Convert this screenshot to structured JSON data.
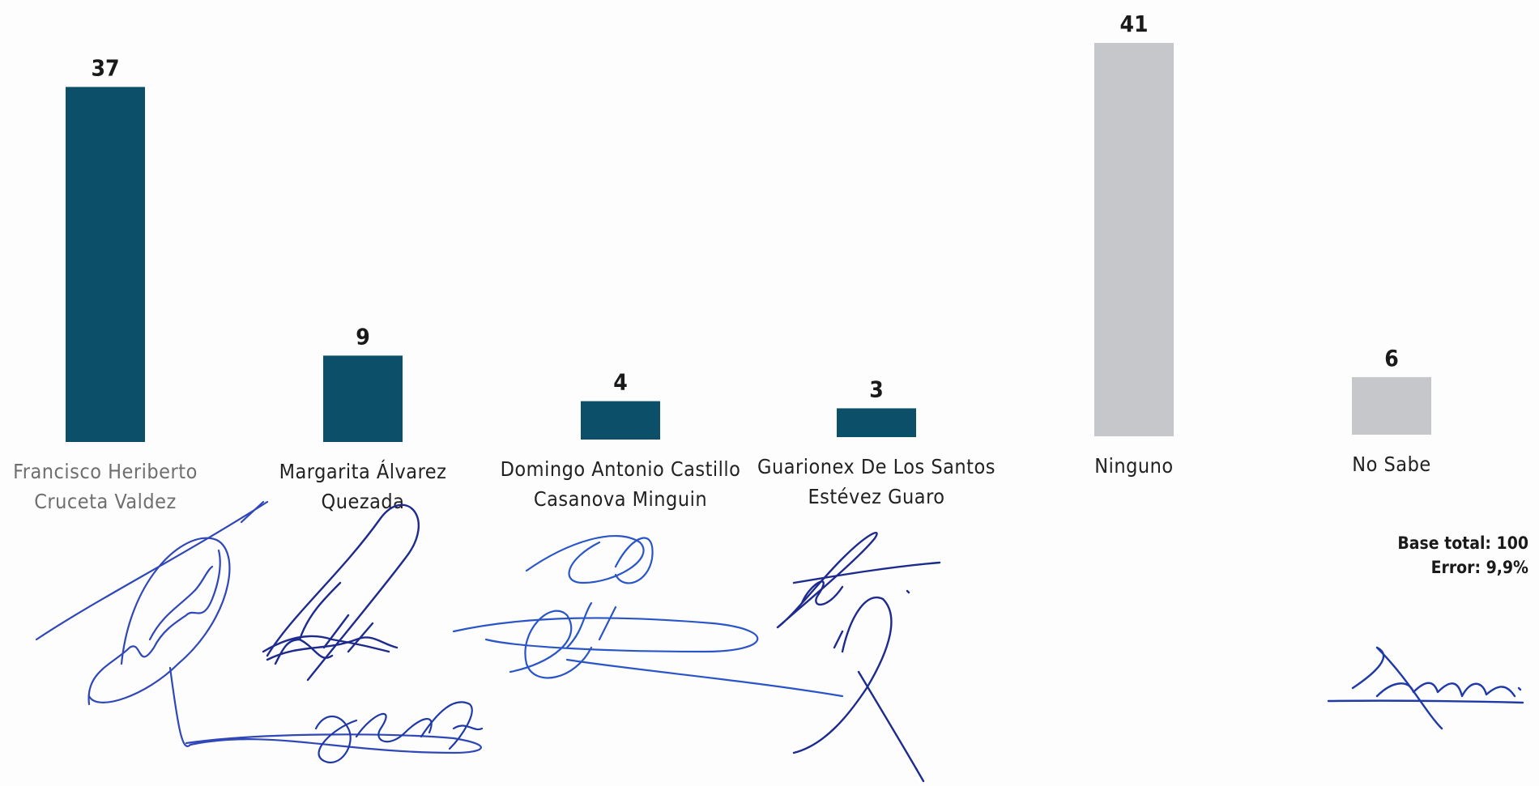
{
  "chart_data": {
    "type": "bar",
    "categories": [
      "Francisco Heriberto Cruceta Valdez",
      "Margarita Álvarez Quezada",
      "Domingo Antonio Castillo Casanova Minguin",
      "Guarionex De Los Santos Estévez Guaro",
      "Ninguno",
      "No Sabe"
    ],
    "category_label_lines": [
      [
        "Francisco Heriberto",
        "Cruceta Valdez"
      ],
      [
        "Margarita Álvarez",
        "Quezada"
      ],
      [
        "Domingo Antonio Castillo",
        "Casanova Minguin"
      ],
      [
        "Guarionex De Los Santos",
        "Estévez Guaro"
      ],
      [
        "Ninguno"
      ],
      [
        "No Sabe"
      ]
    ],
    "values": [
      37,
      9,
      4,
      3,
      41,
      6
    ],
    "value_labels": [
      "37",
      "9",
      "4",
      "3",
      "41",
      "6"
    ],
    "colors": [
      "#0b4f68",
      "#0b4f68",
      "#0b4f68",
      "#0b4f68",
      "#c6c7ca",
      "#c6c7ca"
    ],
    "title": "",
    "xlabel": "",
    "ylabel": "",
    "ylim": [
      0,
      41
    ],
    "grid": false,
    "legend": "none"
  },
  "footnote": {
    "base": "Base total: 100",
    "error": "Error: 9,9%"
  }
}
